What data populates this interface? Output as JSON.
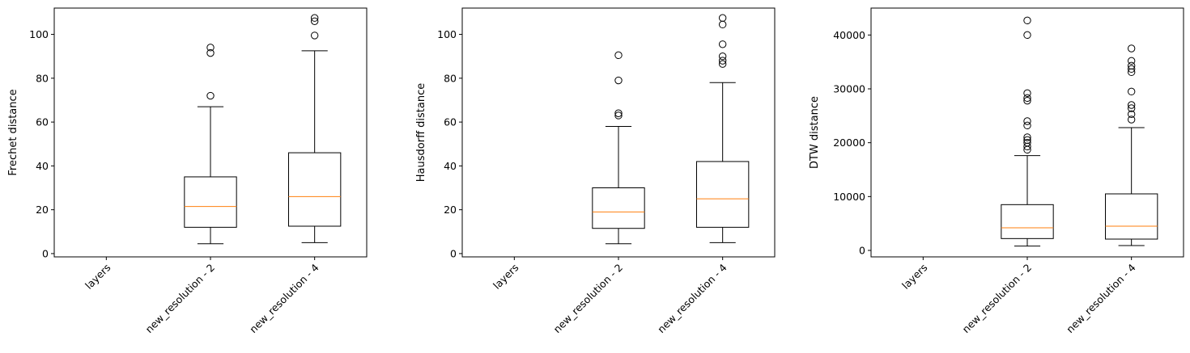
{
  "chart_data": [
    {
      "type": "box",
      "ylabel": "Frechet distance",
      "categories": [
        "layers",
        "new_resolution - 2",
        "new_resolution - 4"
      ],
      "ylim": [
        -1.5,
        112
      ],
      "yticks": [
        0,
        20,
        40,
        60,
        80,
        100
      ],
      "boxes": [
        null,
        {
          "whisker_low": 4.5,
          "q1": 12,
          "median": 21.5,
          "q3": 35,
          "whisker_high": 67,
          "outliers": [
            72,
            91.5,
            94
          ]
        },
        {
          "whisker_low": 5,
          "q1": 12.5,
          "median": 26,
          "q3": 46,
          "whisker_high": 92.5,
          "outliers": [
            99.5,
            106,
            107.5
          ]
        }
      ]
    },
    {
      "type": "box",
      "ylabel": "Hausdorff distance",
      "categories": [
        "layers",
        "new_resolution - 2",
        "new_resolution - 4"
      ],
      "ylim": [
        -1.5,
        112
      ],
      "yticks": [
        0,
        20,
        40,
        60,
        80,
        100
      ],
      "boxes": [
        null,
        {
          "whisker_low": 4.5,
          "q1": 11.5,
          "median": 19,
          "q3": 30,
          "whisker_high": 58,
          "outliers": [
            63,
            64,
            79,
            90.5
          ]
        },
        {
          "whisker_low": 5,
          "q1": 12,
          "median": 25,
          "q3": 42,
          "whisker_high": 78,
          "outliers": [
            86.5,
            88,
            90,
            95.5,
            104.5,
            107.5
          ]
        }
      ]
    },
    {
      "type": "box",
      "ylabel": "DTW distance",
      "categories": [
        "layers",
        "new_resolution - 2",
        "new_resolution - 4"
      ],
      "ylim": [
        -1200,
        45000
      ],
      "yticks": [
        0,
        10000,
        20000,
        30000,
        40000
      ],
      "boxes": [
        null,
        {
          "whisker_low": 800,
          "q1": 2200,
          "median": 4200,
          "q3": 8500,
          "whisker_high": 17600,
          "outliers": [
            18700,
            19300,
            20000,
            20500,
            21000,
            23200,
            24000,
            27800,
            28300,
            29200,
            40000,
            42700
          ]
        },
        {
          "whisker_low": 900,
          "q1": 2100,
          "median": 4500,
          "q3": 10500,
          "whisker_high": 22800,
          "outliers": [
            24300,
            25300,
            26400,
            27000,
            29500,
            33100,
            33700,
            34300,
            35200,
            37500
          ]
        }
      ]
    }
  ],
  "colors": {
    "median": "#ff7f0e",
    "box": "#000000"
  }
}
